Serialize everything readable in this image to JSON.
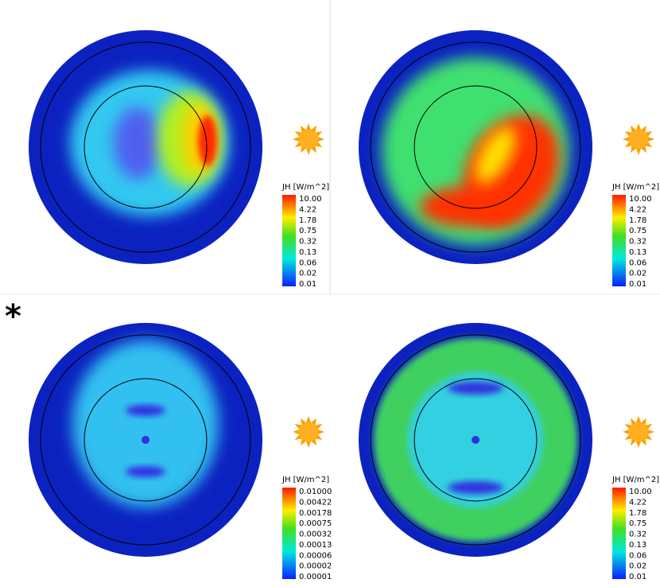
{
  "marker": "*",
  "panels": [
    {
      "colorbar": {
        "title": "JH [W/m^2]",
        "ticks": [
          "10.00",
          "4.22",
          "1.78",
          "0.75",
          "0.32",
          "0.13",
          "0.06",
          "0.02",
          "0.01"
        ]
      }
    },
    {
      "colorbar": {
        "title": "JH [W/m^2]",
        "ticks": [
          "10.00",
          "4.22",
          "1.78",
          "0.75",
          "0.32",
          "0.13",
          "0.06",
          "0.02",
          "0.01"
        ]
      }
    },
    {
      "colorbar": {
        "title": "JH [W/m^2]",
        "ticks": [
          "0.01000",
          "0.00422",
          "0.00178",
          "0.00075",
          "0.00032",
          "0.00013",
          "0.00006",
          "0.00002",
          "0.00001"
        ]
      }
    },
    {
      "colorbar": {
        "title": "JH [W/m^2]",
        "ticks": [
          "10.00",
          "4.22",
          "1.78",
          "0.75",
          "0.32",
          "0.13",
          "0.06",
          "0.02",
          "0.01"
        ]
      }
    }
  ]
}
